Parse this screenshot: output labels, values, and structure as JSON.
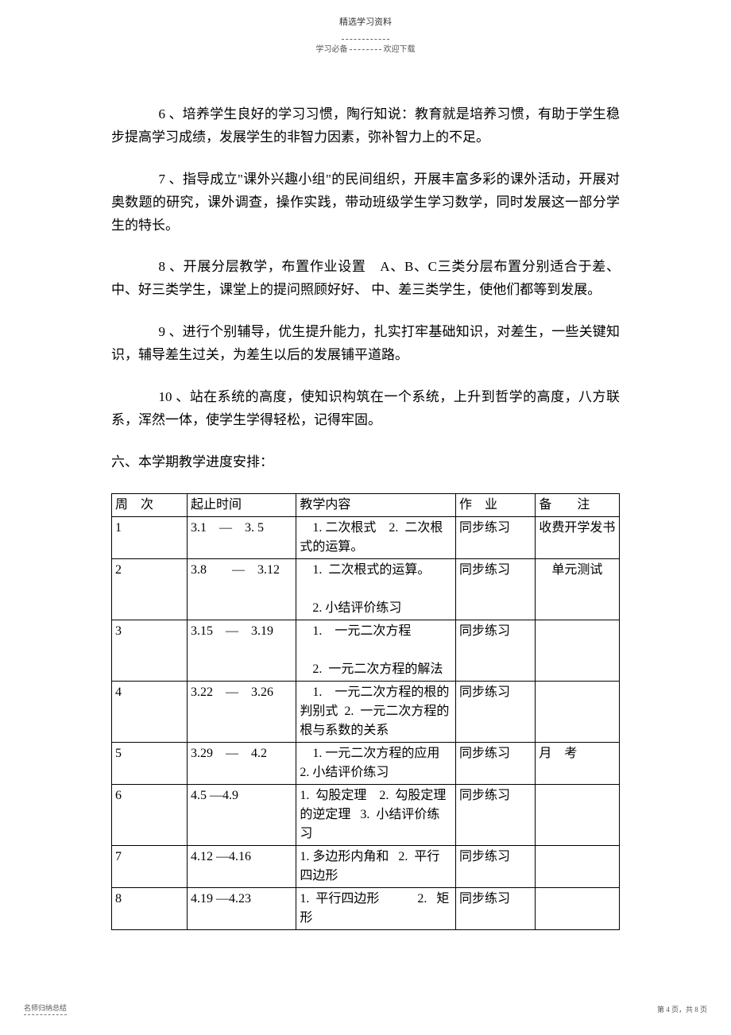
{
  "header": {
    "top": "精选学习资料",
    "sub_left": "学习必备",
    "sub_right": "欢迎下载"
  },
  "paragraphs": {
    "p6": "6 、培养学生良好的学习习惯，陶行知说：教育就是培养习惯，有助于学生稳步提高学习成绩，发展学生的非智力因素，弥补智力上的不足。",
    "p7": "7 、指导成立\"课外兴趣小组\"的民间组织，开展丰富多彩的课外活动，开展对奥数题的研究，课外调查，操作实践，带动班级学生学习数学，同时发展这一部分学生的特长。",
    "p8": "8 、开展分层教学，布置作业设置　A、B、C三类分层布置分别适合于差、中、好三类学生，课堂上的提问照顾好好、 中、差三类学生，使他们都等到发展。",
    "p9": "9 、进行个别辅导，优生提升能力，扎实打牢基础知识，对差生，一些关键知识，辅导差生过关，为差生以后的发展铺平道路。",
    "p10": "10 、站在系统的高度，使知识构筑在一个系统，上升到哲学的高度，八方联系，浑然一体，使学生学得轻松，记得牢固。"
  },
  "section_heading": "六、本学期教学进度安排：",
  "table": {
    "headers": {
      "week": "周　次",
      "date": "起止时间",
      "content": "教学内容",
      "homework": "作　业",
      "notes": "备　　注"
    },
    "rows": [
      {
        "week": "1",
        "date": "3.1　—　3. 5",
        "content": "　1. 二次根式　2.  二次根式的运算。",
        "homework": "同步练习",
        "notes": "收费开学发书"
      },
      {
        "week": "2",
        "date": "3.8　　—　3.12",
        "content": "　1.  二次根式的运算。\n\n　2. 小结评价练习",
        "homework": "同步练习",
        "notes": "　单元测试"
      },
      {
        "week": "3",
        "date": "3.15　—　3.19",
        "content": "　1.　一元二次方程\n\n　2.  一元二次方程的解法",
        "homework": "同步练习",
        "notes": ""
      },
      {
        "week": "4",
        "date": "3.22　—　3.26",
        "content": "　1.　一元二次方程的根的判别式  2.  一元二次方程的根与系数的关系",
        "homework": "同步练习",
        "notes": ""
      },
      {
        "week": "5",
        "date": "3.29　—　4.2",
        "content": "　1. 一元二次方程的应用  2. 小结评价练习",
        "homework": "同步练习",
        "notes": "月　考"
      },
      {
        "week": "6",
        "date": "4.5 —4.9",
        "content": "1.  勾股定理　2.  勾股定理的逆定理   3.  小结评价练习",
        "homework": "同步练习",
        "notes": ""
      },
      {
        "week": "7",
        "date": "4.12 —4.16",
        "content": "1. 多边形内角和   2.  平行四边形",
        "homework": "同步练习",
        "notes": ""
      },
      {
        "week": "8",
        "date": "4.19 —4.23",
        "content": "1.  平行四边形　　　2.   矩形",
        "homework": "同步练习",
        "notes": ""
      }
    ]
  },
  "footer": {
    "left": "名师归纳总结",
    "right": "第 4 页，共 8 页"
  }
}
